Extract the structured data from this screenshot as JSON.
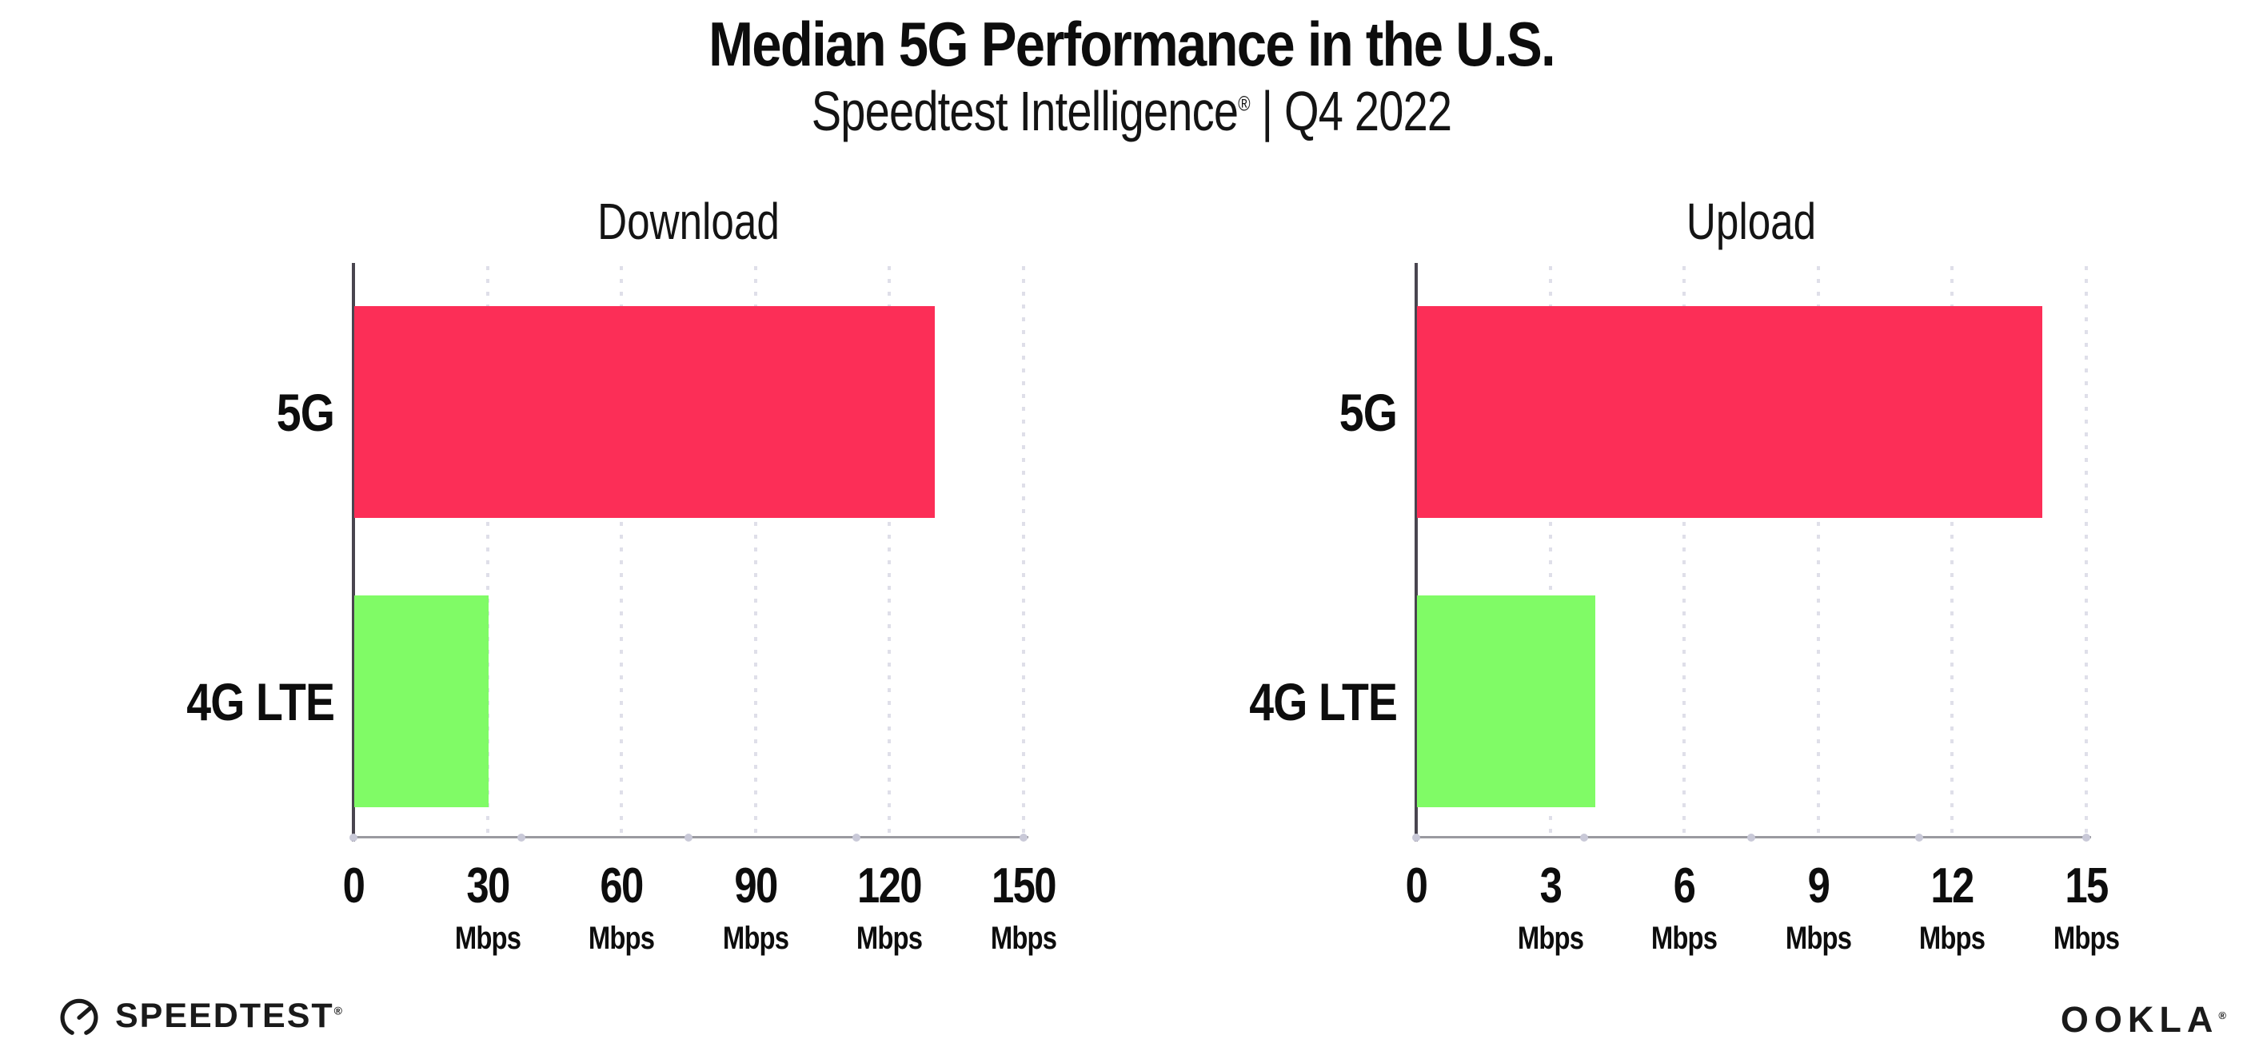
{
  "header": {
    "title": "Median 5G Performance in the U.S.",
    "subtitle_product": "Speedtest Intelligence",
    "subtitle_reg_mark": "®",
    "subtitle_separator": "|",
    "subtitle_period": "Q4 2022"
  },
  "chart_data": [
    {
      "type": "bar",
      "orientation": "horizontal",
      "title": "Download",
      "categories": [
        "5G",
        "4G LTE"
      ],
      "values": [
        130,
        30
      ],
      "value_unit": "Mbps",
      "xlim": [
        0,
        150
      ],
      "xticks": [
        0,
        30,
        60,
        90,
        120,
        150
      ],
      "xtick_unit_label": "Mbps",
      "bar_colors": [
        "#fc2e57",
        "#80fb66"
      ],
      "grid": "dotted vertical gridlines at each tick",
      "legend": "none"
    },
    {
      "type": "bar",
      "orientation": "horizontal",
      "title": "Upload",
      "categories": [
        "5G",
        "4G LTE"
      ],
      "values": [
        14,
        4
      ],
      "value_unit": "Mbps",
      "xlim": [
        0,
        15
      ],
      "xticks": [
        0,
        3,
        6,
        9,
        12,
        15
      ],
      "xtick_unit_label": "Mbps",
      "bar_colors": [
        "#fc2e57",
        "#80fb66"
      ],
      "grid": "dotted vertical gridlines at each tick",
      "legend": "none"
    }
  ],
  "footer": {
    "speedtest_wordmark": "SPEEDTEST",
    "speedtest_reg_mark": "®",
    "ookla_wordmark": "OOKLA",
    "ookla_reg_mark": "®"
  },
  "colors": {
    "bar_5g": "#fc2e57",
    "bar_4g_lte": "#80fb66",
    "x_axis_line": "#9a9aa0",
    "y_axis_line": "#49454f",
    "gridline_dots": "#dfdfe9",
    "axis_marker_dots": "#c9c9d8",
    "text": "#0d0d0d"
  }
}
